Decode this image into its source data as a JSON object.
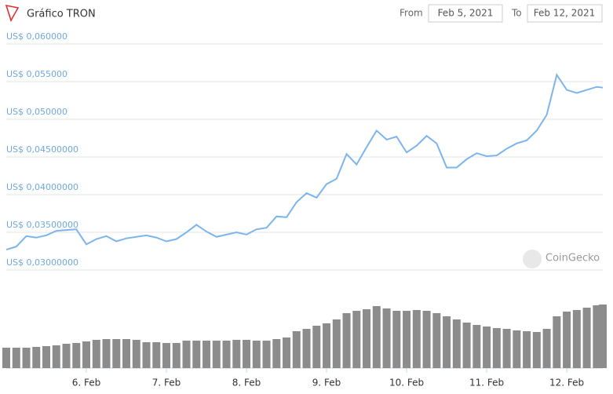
{
  "header": {
    "title": "Gráfico TRON",
    "from_label": "From",
    "from_date": "Feb 5, 2021",
    "to_label": "To",
    "to_date": "Feb 12, 2021"
  },
  "watermark": "CoinGecko",
  "chart_data": {
    "type": "line",
    "x": [
      5.0,
      5.125,
      5.25,
      5.375,
      5.5,
      5.625,
      5.75,
      5.875,
      6.0,
      6.125,
      6.25,
      6.375,
      6.5,
      6.625,
      6.75,
      6.875,
      7.0,
      7.125,
      7.25,
      7.375,
      7.5,
      7.625,
      7.75,
      7.875,
      8.0,
      8.125,
      8.25,
      8.375,
      8.5,
      8.625,
      8.75,
      8.875,
      9.0,
      9.125,
      9.25,
      9.375,
      9.5,
      9.625,
      9.75,
      9.875,
      10.0,
      10.125,
      10.25,
      10.375,
      10.5,
      10.625,
      10.75,
      10.875,
      11.0,
      11.125,
      11.25,
      11.375,
      11.5,
      11.625,
      11.75,
      11.875,
      12.0,
      12.125,
      12.25,
      12.375,
      12.45
    ],
    "series": [
      {
        "color": "#7cb5ec",
        "values": [
          0.0327,
          0.0331,
          0.0345,
          0.0343,
          0.0346,
          0.0352,
          0.0353,
          0.0354,
          0.0334,
          0.0341,
          0.0345,
          0.0338,
          0.0342,
          0.0344,
          0.0346,
          0.0343,
          0.0338,
          0.0341,
          0.035,
          0.036,
          0.0351,
          0.0344,
          0.0347,
          0.035,
          0.0347,
          0.0354,
          0.0356,
          0.0371,
          0.037,
          0.039,
          0.0402,
          0.0396,
          0.0414,
          0.0421,
          0.0454,
          0.044,
          0.0463,
          0.0485,
          0.0473,
          0.0477,
          0.0456,
          0.0465,
          0.0478,
          0.0468,
          0.0436,
          0.0436,
          0.0447,
          0.0455,
          0.0451,
          0.0452,
          0.0461,
          0.0468,
          0.0472,
          0.0485,
          0.0506,
          0.0559,
          0.0539,
          0.0535,
          0.0539,
          0.0543,
          0.0542
        ]
      },
      {
        "type": "bar",
        "color": "#8c8c8c",
        "axis": "y2",
        "values": [
          26,
          26,
          26,
          27,
          28,
          29,
          31,
          32,
          34,
          36,
          37,
          37,
          37,
          36,
          33,
          33,
          32,
          32,
          35,
          35,
          35,
          35,
          35,
          36,
          36,
          35,
          35,
          37,
          39,
          47,
          50,
          54,
          57,
          62,
          70,
          73,
          75,
          79,
          76,
          73,
          73,
          74,
          73,
          70,
          66,
          62,
          58,
          55,
          53,
          51,
          50,
          48,
          47,
          46,
          50,
          66,
          72,
          74,
          77,
          80,
          81
        ]
      }
    ],
    "xlim": [
      5.0,
      12.45
    ],
    "xticks": [
      {
        "value": 6,
        "label": "6. Feb"
      },
      {
        "value": 7,
        "label": "7. Feb"
      },
      {
        "value": 8,
        "label": "8. Feb"
      },
      {
        "value": 9,
        "label": "9. Feb"
      },
      {
        "value": 10,
        "label": "10. Feb"
      },
      {
        "value": 11,
        "label": "11. Feb"
      },
      {
        "value": 12,
        "label": "12. Feb"
      }
    ],
    "ylim": [
      0.03,
      0.06
    ],
    "yticks": [
      {
        "value": 0.03,
        "label": "US$ 0,03000000"
      },
      {
        "value": 0.035,
        "label": "US$ 0,03500000"
      },
      {
        "value": 0.04,
        "label": "US$ 0,04000000"
      },
      {
        "value": 0.045,
        "label": "US$ 0,04500000"
      },
      {
        "value": 0.05,
        "label": "US$ 0,050000"
      },
      {
        "value": 0.055,
        "label": "US$ 0,055000"
      },
      {
        "value": 0.06,
        "label": "US$ 0,060000"
      }
    ],
    "y2lim": [
      0,
      100
    ],
    "grid": true
  }
}
